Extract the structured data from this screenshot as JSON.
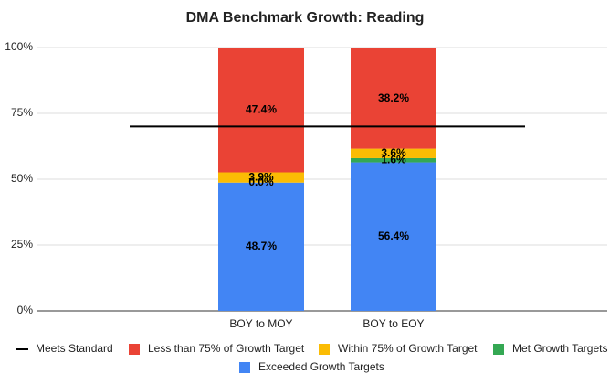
{
  "chart_data": {
    "type": "bar",
    "stacked": true,
    "title": "DMA Benchmark Growth: Reading",
    "categories": [
      "BOY to MOY",
      "BOY to EOY"
    ],
    "series": [
      {
        "name": "Meets Standard",
        "type": "line",
        "color": "#000000",
        "values": [
          70,
          70
        ]
      },
      {
        "name": "Exceeded Growth Targets",
        "color": "#4285f4",
        "values": [
          48.7,
          56.4
        ],
        "value_labels": [
          "48.7%",
          "56.4%"
        ]
      },
      {
        "name": "Met Growth Targets",
        "color": "#34a853",
        "values": [
          0.0,
          1.6
        ],
        "value_labels": [
          "0.0%",
          "1.6%"
        ]
      },
      {
        "name": "Within 75% of Growth Target",
        "color": "#fbbc04",
        "values": [
          3.9,
          3.6
        ],
        "value_labels": [
          "3.9%",
          "3.6%"
        ]
      },
      {
        "name": "Less than 75% of Growth Target",
        "color": "#ea4335",
        "values": [
          47.4,
          38.2
        ],
        "value_labels": [
          "47.4%",
          "38.2%"
        ]
      }
    ],
    "ylim": [
      0,
      100
    ],
    "yticks": [
      {
        "value": 0,
        "label": "0%"
      },
      {
        "value": 25,
        "label": "25%"
      },
      {
        "value": 50,
        "label": "50%"
      },
      {
        "value": 75,
        "label": "75%"
      },
      {
        "value": 100,
        "label": "100%"
      }
    ],
    "grid": true,
    "legend": "bottom"
  }
}
